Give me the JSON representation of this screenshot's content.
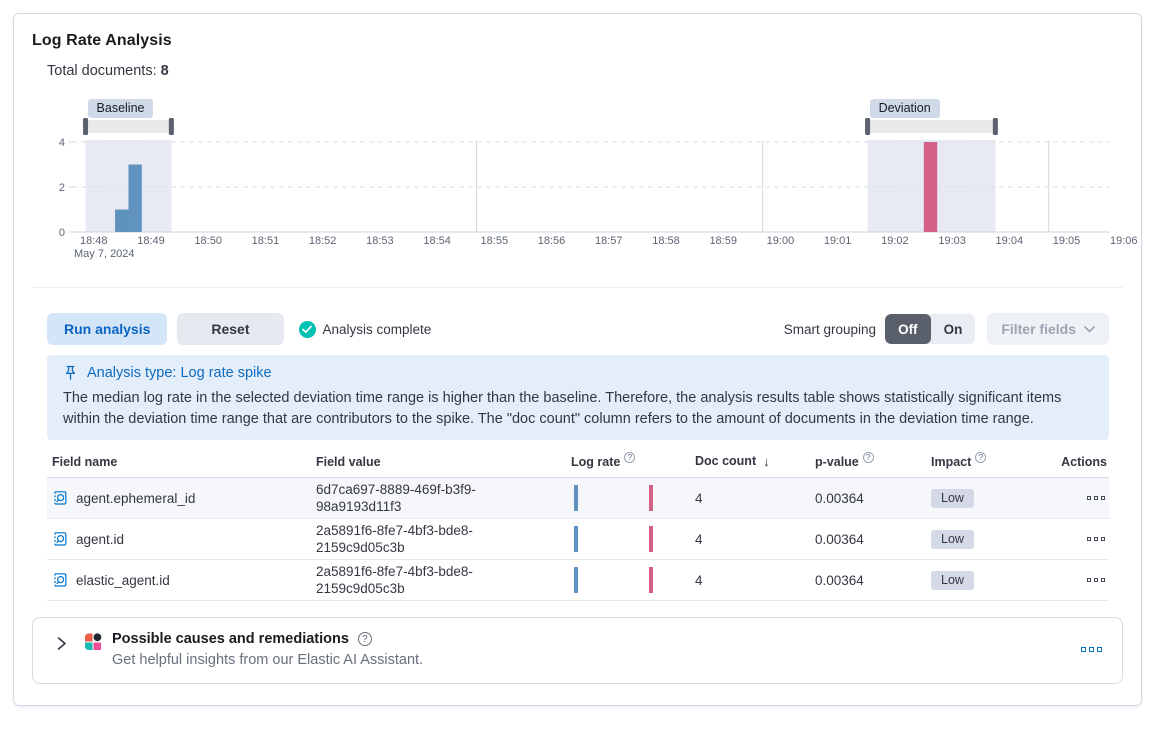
{
  "page": {
    "title": "Log Rate Analysis"
  },
  "summary": {
    "label": "Total documents:",
    "value": "8"
  },
  "icons": {
    "help_glyph": "?",
    "sort_desc_glyph": "↓"
  },
  "colors": {
    "accent_blue": "#0071C2",
    "baseline_bar": "#6092C0",
    "deviation_bar": "#D36086",
    "success_check": "#00BFB3",
    "callout_bg": "#E3EEFA",
    "impact_badge_bg": "#D3D9E6",
    "brush_handle": "#5B616D",
    "toggle_selected_bg": "#5A606B"
  },
  "chart_data": {
    "type": "bar",
    "title": "",
    "xlabel": "",
    "ylabel": "",
    "time_domain": [
      "18:48",
      "19:06"
    ],
    "x_ticks": [
      "18:48",
      "18:49",
      "18:50",
      "18:51",
      "18:52",
      "18:53",
      "18:54",
      "18:55",
      "18:56",
      "18:57",
      "18:58",
      "18:59",
      "19:00",
      "19:01",
      "19:02",
      "19:03",
      "19:04",
      "19:05",
      "19:06"
    ],
    "x_axis_date": "May 7, 2024",
    "y_ticks": [
      0,
      2,
      4
    ],
    "ylim": [
      0,
      4
    ],
    "bucket_seconds": 14,
    "series": [
      {
        "name": "baseline",
        "color": "#6092C0",
        "points": [
          {
            "time": "18:48:41",
            "value": 1
          },
          {
            "time": "18:48:55",
            "value": 3
          }
        ]
      },
      {
        "name": "deviation",
        "color": "#D36086",
        "points": [
          {
            "time": "19:02:49",
            "value": 4
          }
        ]
      }
    ],
    "brushes": [
      {
        "label": "Baseline",
        "from": "18:48:10",
        "to": "18:49:40"
      },
      {
        "label": "Deviation",
        "from": "19:01:50",
        "to": "19:04:04"
      }
    ],
    "vertical_gridlines": [
      "18:55",
      "19:00",
      "19:05"
    ],
    "horizontal_gridlines": [
      2,
      4
    ],
    "legend": "off"
  },
  "toolbar": {
    "run_button": "Run analysis",
    "reset_button": "Reset",
    "status": "Analysis complete",
    "smart_grouping_label": "Smart grouping",
    "toggle_off": "Off",
    "toggle_on": "On",
    "filter_fields_button": "Filter fields"
  },
  "callout": {
    "title": "Analysis type: Log rate spike",
    "body": "The median log rate in the selected deviation time range is higher than the baseline. Therefore, the analysis results table shows statistically significant items within the deviation time range that are contributors to the spike. The \"doc count\" column refers to the amount of documents in the deviation time range."
  },
  "table": {
    "columns": [
      "Field name",
      "Field value",
      "Log rate",
      "Doc count",
      "p-value",
      "Impact",
      "Actions"
    ],
    "sorted_column": "Doc count",
    "sort_direction": "desc",
    "rows": [
      {
        "field_name": "agent.ephemeral_id",
        "field_value": "6d7ca697-8889-469f-b3f9-98a9193d11f3",
        "doc_count": "4",
        "p_value": "0.00364",
        "impact": "Low"
      },
      {
        "field_name": "agent.id",
        "field_value": "2a5891f6-8fe7-4bf3-bde8-2159c9d05c3b",
        "doc_count": "4",
        "p_value": "0.00364",
        "impact": "Low"
      },
      {
        "field_name": "elastic_agent.id",
        "field_value": "2a5891f6-8fe7-4bf3-bde8-2159c9d05c3b",
        "doc_count": "4",
        "p_value": "0.00364",
        "impact": "Low"
      }
    ]
  },
  "footer": {
    "title": "Possible causes and remediations",
    "subtitle": "Get helpful insights from our Elastic AI Assistant."
  }
}
